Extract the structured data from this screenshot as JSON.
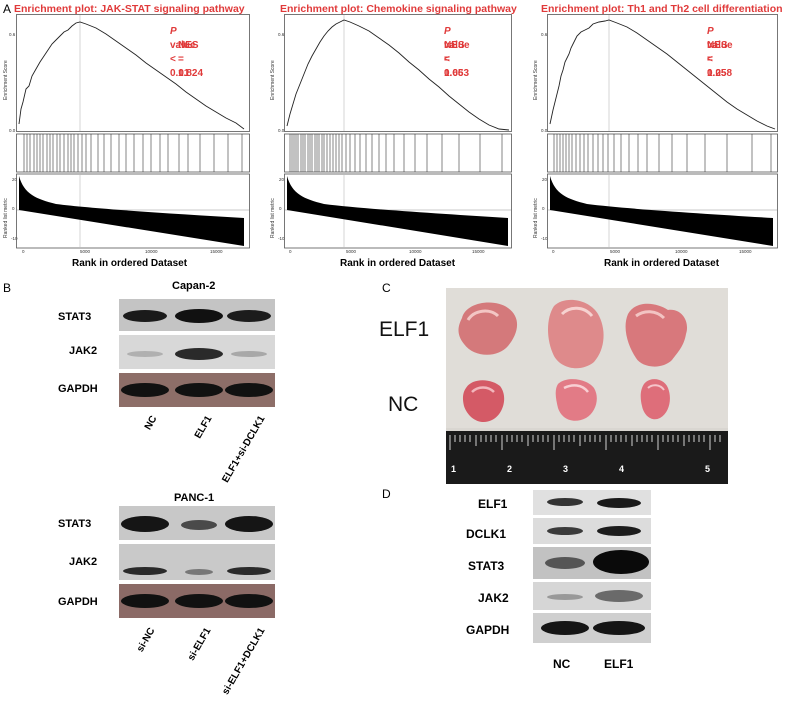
{
  "panel_a": {
    "letter": "A",
    "x_axis_label": "Rank in ordered Dataset",
    "y_label_es": "Enrichment Score",
    "y_label_rank": "Ranked list metric",
    "x_ticks": [
      "0",
      "5000",
      "10000",
      "15000"
    ],
    "plots": [
      {
        "title": "Enrichment plot: JAK-STAT signaling pathway",
        "p_prefix": "P",
        "p_text": " value < 0.01",
        "nes": "NES = 1.824",
        "es_ticks": [
          "0.6",
          "0.5",
          "0.4",
          "0.3",
          "0.2",
          "0.1",
          "0.0"
        ],
        "rank_ticks": [
          "20",
          "10",
          "0",
          "-10"
        ]
      },
      {
        "title": "Enrichment plot: Chemokine signaling pathway",
        "p_prefix": "P",
        "p_text": " value < 0.05",
        "nes": "NES = 1.663",
        "es_ticks": [
          "0.6",
          "0.5",
          "0.4",
          "0.3",
          "0.2",
          "0.1",
          "0.0"
        ],
        "rank_ticks": [
          "20",
          "10",
          "0",
          "-10"
        ]
      },
      {
        "title": "Enrichment plot: Th1 and Th2 cell differentiation",
        "p_prefix": "P",
        "p_text": " value < 0.05",
        "nes": "NES = 1.258",
        "es_ticks": [
          "0.6",
          "0.5",
          "0.4",
          "0.3",
          "0.2",
          "0.1",
          "0.0"
        ],
        "rank_ticks": [
          "20",
          "10",
          "0",
          "-10"
        ]
      }
    ]
  },
  "panel_b": {
    "letter": "B",
    "blocks": [
      {
        "cell_line": "Capan-2",
        "rows": [
          "STAT3",
          "JAK2",
          "GAPDH"
        ],
        "lanes": [
          "NC",
          "ELF1",
          "ELF1+si-DCLK1"
        ]
      },
      {
        "cell_line": "PANC-1",
        "rows": [
          "STAT3",
          "JAK2",
          "GAPDH"
        ],
        "lanes": [
          "si-NC",
          "si-ELF1",
          "si-ELF1+DCLK1"
        ]
      }
    ]
  },
  "panel_c": {
    "letter": "C",
    "row_labels": [
      "ELF1",
      "NC"
    ],
    "ruler_numbers": [
      "1",
      "2",
      "3",
      "4",
      "5"
    ]
  },
  "panel_d": {
    "letter": "D",
    "rows": [
      "ELF1",
      "DCLK1",
      "STAT3",
      "JAK2",
      "GAPDH"
    ],
    "lanes": [
      "NC",
      "ELF1"
    ]
  },
  "colors": {
    "stat_red": "#e03a3a"
  }
}
